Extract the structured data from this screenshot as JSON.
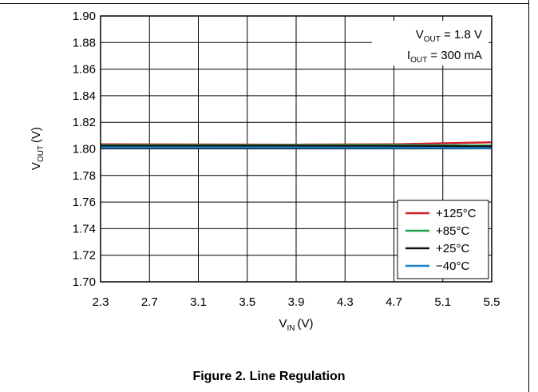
{
  "caption": "Figure 2. Line Regulation",
  "chart_data": {
    "type": "line",
    "xlabel": "V",
    "xlabel_sub": "IN",
    "xlabel_unit": "(V)",
    "ylabel": "V",
    "ylabel_sub": "OUT",
    "ylabel_unit": "(V)",
    "xlim": [
      2.3,
      5.5
    ],
    "ylim": [
      1.7,
      1.9
    ],
    "x_ticks": [
      "2.3",
      "2.7",
      "3.1",
      "3.5",
      "3.9",
      "4.3",
      "4.7",
      "5.1",
      "5.5"
    ],
    "y_ticks": [
      "1.70",
      "1.72",
      "1.74",
      "1.76",
      "1.78",
      "1.80",
      "1.82",
      "1.84",
      "1.86",
      "1.88",
      "1.90"
    ],
    "grid": true,
    "legend_position": "bottom-right",
    "annotations": [
      {
        "main": "V",
        "sub": "OUT",
        "rest": " = 1.8 V"
      },
      {
        "main": "I",
        "sub": "OUT",
        "rest": " = 300 mA"
      }
    ],
    "series": [
      {
        "name": "+125°C",
        "color": "#d0202a",
        "x": [
          2.3,
          3.1,
          3.9,
          4.7,
          5.5
        ],
        "y": [
          1.8035,
          1.8033,
          1.8032,
          1.8034,
          1.805
        ]
      },
      {
        "name": "+85°C",
        "color": "#1aa04a",
        "x": [
          2.3,
          3.1,
          3.9,
          4.7,
          5.5
        ],
        "y": [
          1.8028,
          1.8028,
          1.8028,
          1.8028,
          1.8025
        ]
      },
      {
        "name": "+25°C",
        "color": "#111111",
        "x": [
          2.3,
          3.1,
          3.9,
          4.7,
          5.5
        ],
        "y": [
          1.8022,
          1.8022,
          1.8022,
          1.8021,
          1.8018
        ]
      },
      {
        "name": "−40°C",
        "color": "#1f7ec8",
        "x": [
          2.3,
          3.1,
          3.9,
          4.7,
          5.5
        ],
        "y": [
          1.801,
          1.801,
          1.801,
          1.8009,
          1.8006
        ]
      }
    ]
  }
}
